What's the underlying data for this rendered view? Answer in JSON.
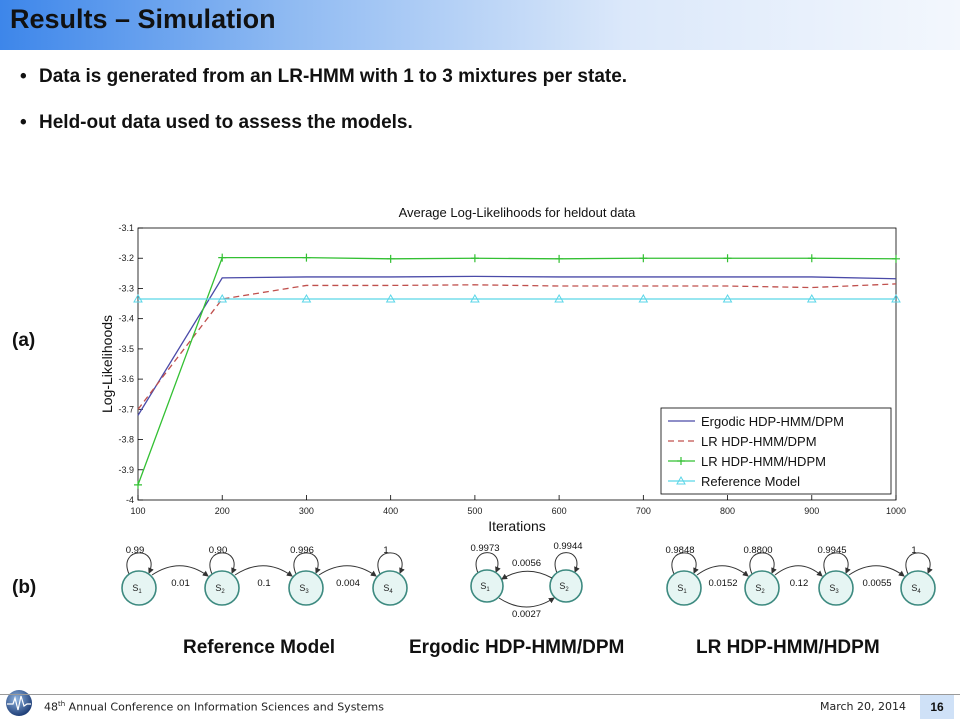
{
  "slide": {
    "title": "Results – Simulation",
    "bullets": [
      "Data is generated from an LR-HMM with 1 to 3 mixtures per state.",
      "Held-out data used to assess the models."
    ],
    "label_a": "(a)",
    "label_b": "(b)"
  },
  "chart_data": {
    "type": "line",
    "title": "Average Log-Likelihoods for heldout data",
    "xlabel": "Iterations",
    "ylabel": "Log-Likelihoods",
    "x": [
      100,
      200,
      300,
      400,
      500,
      600,
      700,
      800,
      900,
      1000
    ],
    "xlim": [
      100,
      1000
    ],
    "ylim": [
      -4,
      -3.1
    ],
    "xticks": [
      "100",
      "200",
      "300",
      "400",
      "500",
      "600",
      "700",
      "800",
      "900",
      "1000"
    ],
    "yticks": [
      "-3.1",
      "-3.2",
      "-3.3",
      "-3.4",
      "-3.5",
      "-3.6",
      "-3.7",
      "-3.8",
      "-3.9",
      "-4"
    ],
    "legend_position": "bottom-right",
    "series": [
      {
        "name": "Ergodic HDP-HMM/DPM",
        "color": "#4a4aa8",
        "style": "solid",
        "marker": "none",
        "values": [
          -3.72,
          -3.265,
          -3.262,
          -3.262,
          -3.26,
          -3.262,
          -3.262,
          -3.262,
          -3.262,
          -3.268
        ]
      },
      {
        "name": "LR HDP-HMM/DPM",
        "color": "#c0504d",
        "style": "dashed",
        "marker": "none",
        "values": [
          -3.7,
          -3.335,
          -3.29,
          -3.29,
          -3.288,
          -3.292,
          -3.292,
          -3.292,
          -3.297,
          -3.285
        ]
      },
      {
        "name": "LR HDP-HMM/HDPM",
        "color": "#33c033",
        "style": "solid",
        "marker": "plus",
        "values": [
          -3.95,
          -3.198,
          -3.198,
          -3.202,
          -3.2,
          -3.202,
          -3.2,
          -3.2,
          -3.2,
          -3.202
        ]
      },
      {
        "name": "Reference Model",
        "color": "#5ad6e8",
        "style": "solid",
        "marker": "triangle",
        "values": [
          -3.335,
          -3.335,
          -3.335,
          -3.335,
          -3.335,
          -3.335,
          -3.335,
          -3.335,
          -3.335,
          -3.335
        ]
      }
    ]
  },
  "diagrams": {
    "reference": {
      "title": "Reference Model",
      "states": [
        "1",
        "2",
        "3",
        "4"
      ],
      "self_loops": [
        "0.99",
        "0.90",
        "0.996",
        "1"
      ],
      "transitions": [
        "0.01",
        "0.1",
        "0.004"
      ]
    },
    "ergodic": {
      "title": "Ergodic HDP-HMM/DPM",
      "states": [
        "1",
        "2"
      ],
      "self_loops": [
        "0.9973",
        "0.9944"
      ],
      "transitions": [
        "0.0056",
        "0.0027"
      ]
    },
    "lr": {
      "title": "LR HDP-HMM/HDPM",
      "states": [
        "1",
        "2",
        "3",
        "4"
      ],
      "self_loops": [
        "0.9848",
        "0.8800",
        "0.9945",
        "1"
      ],
      "transitions": [
        "0.0152",
        "0.12",
        "0.0055"
      ]
    }
  },
  "footer": {
    "conference_ordinal": "48",
    "conference_sup": "th",
    "conference_rest": " Annual Conference on Information Sciences and Systems",
    "date": "March 20, 2014",
    "page": "16"
  }
}
